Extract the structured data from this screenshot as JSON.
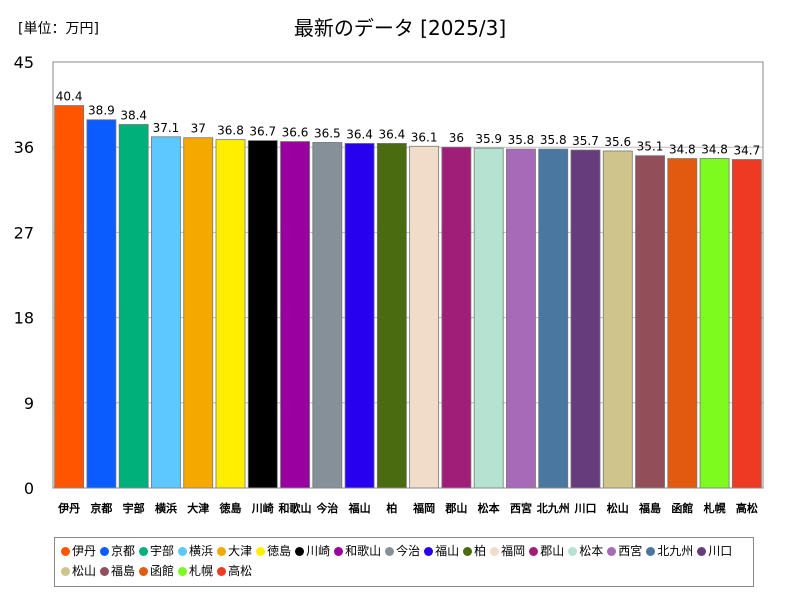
{
  "chart_data": {
    "type": "bar",
    "title": "最新のデータ [2025/3]",
    "unit_label": "[単位：万円]",
    "ylim": [
      0,
      45
    ],
    "yticks": [
      0,
      9,
      18,
      27,
      36,
      45
    ],
    "grid": true,
    "legend_placement": "bottom",
    "categories": [
      "伊丹",
      "京都",
      "宇部",
      "横浜",
      "大津",
      "徳島",
      "川崎",
      "和歌山",
      "今治",
      "福山",
      "柏",
      "福岡",
      "郡山",
      "松本",
      "西宮",
      "北九州",
      "川口",
      "松山",
      "福島",
      "函館",
      "札幌",
      "高松"
    ],
    "values": [
      40.4,
      38.9,
      38.4,
      37.1,
      37,
      36.8,
      36.7,
      36.6,
      36.5,
      36.4,
      36.4,
      36.1,
      36,
      35.9,
      35.8,
      35.8,
      35.7,
      35.6,
      35.1,
      34.8,
      34.8,
      34.7
    ],
    "value_labels": [
      "40.4",
      "38.9",
      "38.4",
      "37.1",
      "37",
      "36.8",
      "36.7",
      "36.6",
      "36.5",
      "36.4",
      "36.4",
      "36.1",
      "36",
      "35.9",
      "35.8",
      "35.8",
      "35.7",
      "35.6",
      "35.1",
      "34.8",
      "34.8",
      "34.7"
    ],
    "colors": [
      "#ff5500",
      "#0b5cff",
      "#00b07a",
      "#5cc8ff",
      "#f5a800",
      "#ffee00",
      "#000000",
      "#99009f",
      "#869098",
      "#2800f0",
      "#4a6b10",
      "#f0dcc8",
      "#a01e78",
      "#b6e2d2",
      "#a66ab8",
      "#4a77a0",
      "#663c7c",
      "#cfc48c",
      "#924f5a",
      "#e15a0f",
      "#7dfa1e",
      "#ee3a22"
    ]
  }
}
